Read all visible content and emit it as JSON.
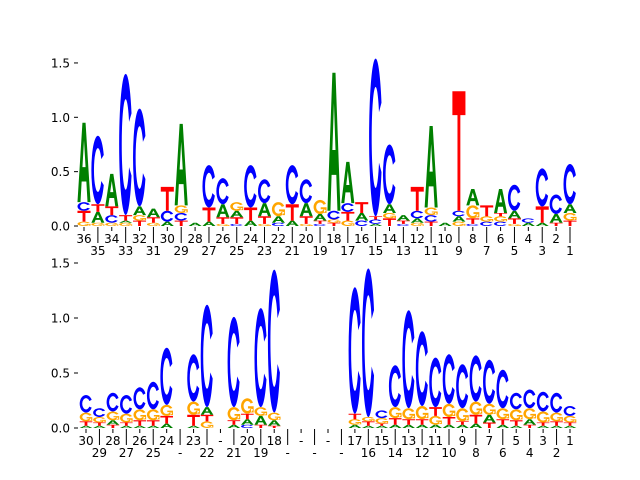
{
  "chart_data": [
    {
      "type": "sequence-logo",
      "ylabel": "",
      "ylim": [
        0,
        1.55
      ],
      "yticks": [
        "0.0",
        "0.5",
        "1.0",
        "1.5"
      ],
      "ytick_values": [
        0,
        0.5,
        1.0,
        1.5
      ],
      "colors": {
        "A": "#008000",
        "C": "#0000ff",
        "G": "#ffa500",
        "T": "#ff0000"
      },
      "positions": [
        "36",
        "35",
        "34",
        "33",
        "32",
        "31",
        "30",
        "29",
        "28",
        "27",
        "26",
        "25",
        "24",
        "23",
        "22",
        "21",
        "20",
        "19",
        "18",
        "17",
        "16",
        "15",
        "14",
        "13",
        "12",
        "11",
        "10",
        "9",
        "8",
        "7",
        "6",
        "5",
        "4",
        "3",
        "2",
        "1"
      ],
      "stacks": [
        [
          [
            "G",
            0.04
          ],
          [
            "T",
            0.1
          ],
          [
            "C",
            0.08
          ],
          [
            "A",
            0.73
          ]
        ],
        [
          [
            "G",
            0.03
          ],
          [
            "A",
            0.1
          ],
          [
            "T",
            0.07
          ],
          [
            "C",
            0.63
          ]
        ],
        [
          [
            "G",
            0.03
          ],
          [
            "C",
            0.07
          ],
          [
            "T",
            0.08
          ],
          [
            "A",
            0.3
          ]
        ],
        [
          [
            "G",
            0.03
          ],
          [
            "A",
            0.02
          ],
          [
            "T",
            0.05
          ],
          [
            "C",
            1.3
          ]
        ],
        [
          [
            "T",
            0.05
          ],
          [
            "G",
            0.05
          ],
          [
            "A",
            0.08
          ],
          [
            "C",
            0.9
          ]
        ],
        [
          [
            "G",
            0.03
          ],
          [
            "T",
            0.05
          ],
          [
            "A",
            0.08
          ]
        ],
        [
          [
            "A",
            0.04
          ],
          [
            "C",
            0.1
          ],
          [
            "T",
            0.22
          ]
        ],
        [
          [
            "T",
            0.05
          ],
          [
            "C",
            0.07
          ],
          [
            "G",
            0.07
          ],
          [
            "A",
            0.75
          ]
        ],
        [
          [
            "A",
            0.03
          ]
        ],
        [
          [
            "A",
            0.04
          ],
          [
            "T",
            0.13
          ],
          [
            "C",
            0.39
          ]
        ],
        [
          [
            "G",
            0.02
          ],
          [
            "T",
            0.06
          ],
          [
            "A",
            0.12
          ],
          [
            "C",
            0.24
          ]
        ],
        [
          [
            "C",
            0.02
          ],
          [
            "T",
            0.06
          ],
          [
            "A",
            0.06
          ],
          [
            "G",
            0.08
          ]
        ],
        [
          [
            "A",
            0.05
          ],
          [
            "T",
            0.12
          ],
          [
            "C",
            0.39
          ]
        ],
        [
          [
            "G",
            0.02
          ],
          [
            "T",
            0.07
          ],
          [
            "A",
            0.12
          ],
          [
            "C",
            0.22
          ]
        ],
        [
          [
            "C",
            0.03
          ],
          [
            "A",
            0.06
          ],
          [
            "G",
            0.13
          ]
        ],
        [
          [
            "A",
            0.05
          ],
          [
            "T",
            0.15
          ],
          [
            "C",
            0.36
          ]
        ],
        [
          [
            "G",
            0.02
          ],
          [
            "T",
            0.07
          ],
          [
            "A",
            0.12
          ],
          [
            "C",
            0.22
          ]
        ],
        [
          [
            "C",
            0.02
          ],
          [
            "T",
            0.03
          ],
          [
            "A",
            0.06
          ],
          [
            "G",
            0.13
          ]
        ],
        [
          [
            "T",
            0.03
          ],
          [
            "G",
            0.03
          ],
          [
            "C",
            0.08
          ],
          [
            "A",
            1.27
          ]
        ],
        [
          [
            "G",
            0.05
          ],
          [
            "T",
            0.08
          ],
          [
            "C",
            0.08
          ],
          [
            "A",
            0.38
          ]
        ],
        [
          [
            "C",
            0.05
          ],
          [
            "A",
            0.07
          ],
          [
            "T",
            0.1
          ]
        ],
        [
          [
            "A",
            0.02
          ],
          [
            "C",
            0.04
          ],
          [
            "T",
            0.03
          ],
          [
            "C",
            1.45
          ]
        ],
        [
          [
            "T",
            0.07
          ],
          [
            "G",
            0.05
          ],
          [
            "A",
            0.08
          ],
          [
            "C",
            0.55
          ]
        ],
        [
          [
            "C",
            0.02
          ],
          [
            "T",
            0.03
          ],
          [
            "A",
            0.05
          ]
        ],
        [
          [
            "G",
            0.03
          ],
          [
            "A",
            0.04
          ],
          [
            "C",
            0.07
          ],
          [
            "T",
            0.22
          ]
        ],
        [
          [
            "T",
            0.04
          ],
          [
            "C",
            0.06
          ],
          [
            "G",
            0.07
          ],
          [
            "A",
            0.75
          ]
        ],
        [
          [
            "A",
            0.03
          ]
        ],
        [
          [
            "G",
            0.04
          ],
          [
            "A",
            0.05
          ],
          [
            "C",
            0.05
          ],
          [
            "T",
            1.1
          ]
        ],
        [
          [
            "C",
            0.02
          ],
          [
            "T",
            0.05
          ],
          [
            "G",
            0.12
          ],
          [
            "A",
            0.15
          ]
        ],
        [
          [
            "C",
            0.04
          ],
          [
            "G",
            0.05
          ],
          [
            "T",
            0.1
          ]
        ],
        [
          [
            "C",
            0.04
          ],
          [
            "G",
            0.05
          ],
          [
            "T",
            0.03
          ],
          [
            "A",
            0.22
          ]
        ],
        [
          [
            "G",
            0.02
          ],
          [
            "T",
            0.05
          ],
          [
            "A",
            0.07
          ],
          [
            "C",
            0.24
          ]
        ],
        [
          [
            "A",
            0.03
          ],
          [
            "C",
            0.04
          ]
        ],
        [
          [
            "A",
            0.03
          ],
          [
            "T",
            0.15
          ],
          [
            "C",
            0.35
          ]
        ],
        [
          [
            "T",
            0.03
          ],
          [
            "A",
            0.08
          ],
          [
            "C",
            0.18
          ]
        ],
        [
          [
            "T",
            0.05
          ],
          [
            "G",
            0.07
          ],
          [
            "A",
            0.08
          ],
          [
            "C",
            0.37
          ]
        ]
      ]
    },
    {
      "type": "sequence-logo",
      "ylabel": "",
      "ylim": [
        0,
        1.55
      ],
      "yticks": [
        "0.0",
        "0.5",
        "1.0",
        "1.5"
      ],
      "ytick_values": [
        0,
        0.5,
        1.0,
        1.5
      ],
      "colors": {
        "A": "#008000",
        "C": "#0000ff",
        "G": "#ffa500",
        "T": "#ff0000"
      },
      "positions": [
        "30",
        "29",
        "28",
        "27",
        "26",
        "25",
        "24",
        "-",
        "23",
        "22",
        "-",
        "21",
        "20",
        "19",
        "18",
        "-",
        "-",
        "-",
        "-",
        "-",
        "17",
        "16",
        "15",
        "14",
        "13",
        "12",
        "11",
        "10",
        "9",
        "8",
        "7",
        "6",
        "5",
        "4",
        "3",
        "2",
        "1"
      ],
      "stacks": [
        [
          [
            "A",
            0.02
          ],
          [
            "T",
            0.04
          ],
          [
            "G",
            0.08
          ],
          [
            "C",
            0.16
          ]
        ],
        [
          [
            "A",
            0.02
          ],
          [
            "T",
            0.03
          ],
          [
            "G",
            0.05
          ],
          [
            "C",
            0.08
          ]
        ],
        [
          [
            "T",
            0.03
          ],
          [
            "A",
            0.04
          ],
          [
            "G",
            0.08
          ],
          [
            "C",
            0.17
          ]
        ],
        [
          [
            "A",
            0.02
          ],
          [
            "T",
            0.03
          ],
          [
            "G",
            0.08
          ],
          [
            "C",
            0.17
          ]
        ],
        [
          [
            "A",
            0.02
          ],
          [
            "T",
            0.05
          ],
          [
            "G",
            0.1
          ],
          [
            "C",
            0.2
          ]
        ],
        [
          [
            "A",
            0.02
          ],
          [
            "T",
            0.05
          ],
          [
            "G",
            0.1
          ],
          [
            "C",
            0.25
          ]
        ],
        [
          [
            "A",
            0.04
          ],
          [
            "T",
            0.07
          ],
          [
            "G",
            0.1
          ],
          [
            "C",
            0.52
          ]
        ],
        [],
        [
          [
            "A",
            0.02
          ],
          [
            "T",
            0.1
          ],
          [
            "G",
            0.12
          ],
          [
            "C",
            0.43
          ]
        ],
        [
          [
            "G",
            0.06
          ],
          [
            "T",
            0.06
          ],
          [
            "A",
            0.07
          ],
          [
            "C",
            0.93
          ]
        ],
        [],
        [
          [
            "A",
            0.03
          ],
          [
            "T",
            0.04
          ],
          [
            "G",
            0.12
          ],
          [
            "C",
            0.82
          ]
        ],
        [
          [
            "C",
            0.03
          ],
          [
            "A",
            0.05
          ],
          [
            "T",
            0.05
          ],
          [
            "G",
            0.14
          ]
        ],
        [
          [
            "T",
            0.03
          ],
          [
            "A",
            0.08
          ],
          [
            "G",
            0.08
          ],
          [
            "C",
            0.9
          ]
        ],
        [
          [
            "T",
            0.02
          ],
          [
            "A",
            0.05
          ],
          [
            "G",
            0.07
          ],
          [
            "C",
            1.3
          ]
        ],
        [],
        [],
        [],
        [],
        [],
        [
          [
            "A",
            0.03
          ],
          [
            "G",
            0.05
          ],
          [
            "T",
            0.05
          ],
          [
            "C",
            1.15
          ]
        ],
        [
          [
            "A",
            0.02
          ],
          [
            "T",
            0.04
          ],
          [
            "G",
            0.04
          ],
          [
            "C",
            1.35
          ]
        ],
        [
          [
            "A",
            0.02
          ],
          [
            "T",
            0.02
          ],
          [
            "G",
            0.05
          ],
          [
            "C",
            0.07
          ]
        ],
        [
          [
            "A",
            0.03
          ],
          [
            "T",
            0.06
          ],
          [
            "G",
            0.1
          ],
          [
            "C",
            0.38
          ]
        ],
        [
          [
            "A",
            0.03
          ],
          [
            "T",
            0.05
          ],
          [
            "G",
            0.1
          ],
          [
            "C",
            0.89
          ]
        ],
        [
          [
            "A",
            0.03
          ],
          [
            "T",
            0.05
          ],
          [
            "G",
            0.12
          ],
          [
            "C",
            0.68
          ]
        ],
        [
          [
            "A",
            0.03
          ],
          [
            "G",
            0.08
          ],
          [
            "T",
            0.08
          ],
          [
            "C",
            0.45
          ]
        ],
        [
          [
            "A",
            0.03
          ],
          [
            "T",
            0.07
          ],
          [
            "G",
            0.12
          ],
          [
            "C",
            0.45
          ]
        ],
        [
          [
            "A",
            0.03
          ],
          [
            "T",
            0.03
          ],
          [
            "G",
            0.12
          ],
          [
            "C",
            0.4
          ]
        ],
        [
          [
            "A",
            0.04
          ],
          [
            "T",
            0.08
          ],
          [
            "G",
            0.12
          ],
          [
            "C",
            0.42
          ]
        ],
        [
          [
            "T",
            0.05
          ],
          [
            "A",
            0.07
          ],
          [
            "G",
            0.1
          ],
          [
            "C",
            0.4
          ]
        ],
        [
          [
            "A",
            0.03
          ],
          [
            "T",
            0.05
          ],
          [
            "G",
            0.1
          ],
          [
            "C",
            0.35
          ]
        ],
        [
          [
            "A",
            0.02
          ],
          [
            "T",
            0.05
          ],
          [
            "G",
            0.1
          ],
          [
            "C",
            0.15
          ]
        ],
        [
          [
            "T",
            0.03
          ],
          [
            "A",
            0.05
          ],
          [
            "G",
            0.1
          ],
          [
            "C",
            0.17
          ]
        ],
        [
          [
            "A",
            0.02
          ],
          [
            "T",
            0.03
          ],
          [
            "G",
            0.1
          ],
          [
            "C",
            0.18
          ]
        ],
        [
          [
            "A",
            0.02
          ],
          [
            "T",
            0.04
          ],
          [
            "G",
            0.08
          ],
          [
            "C",
            0.18
          ]
        ],
        [
          [
            "A",
            0.02
          ],
          [
            "T",
            0.03
          ],
          [
            "G",
            0.06
          ],
          [
            "C",
            0.09
          ]
        ]
      ]
    }
  ]
}
